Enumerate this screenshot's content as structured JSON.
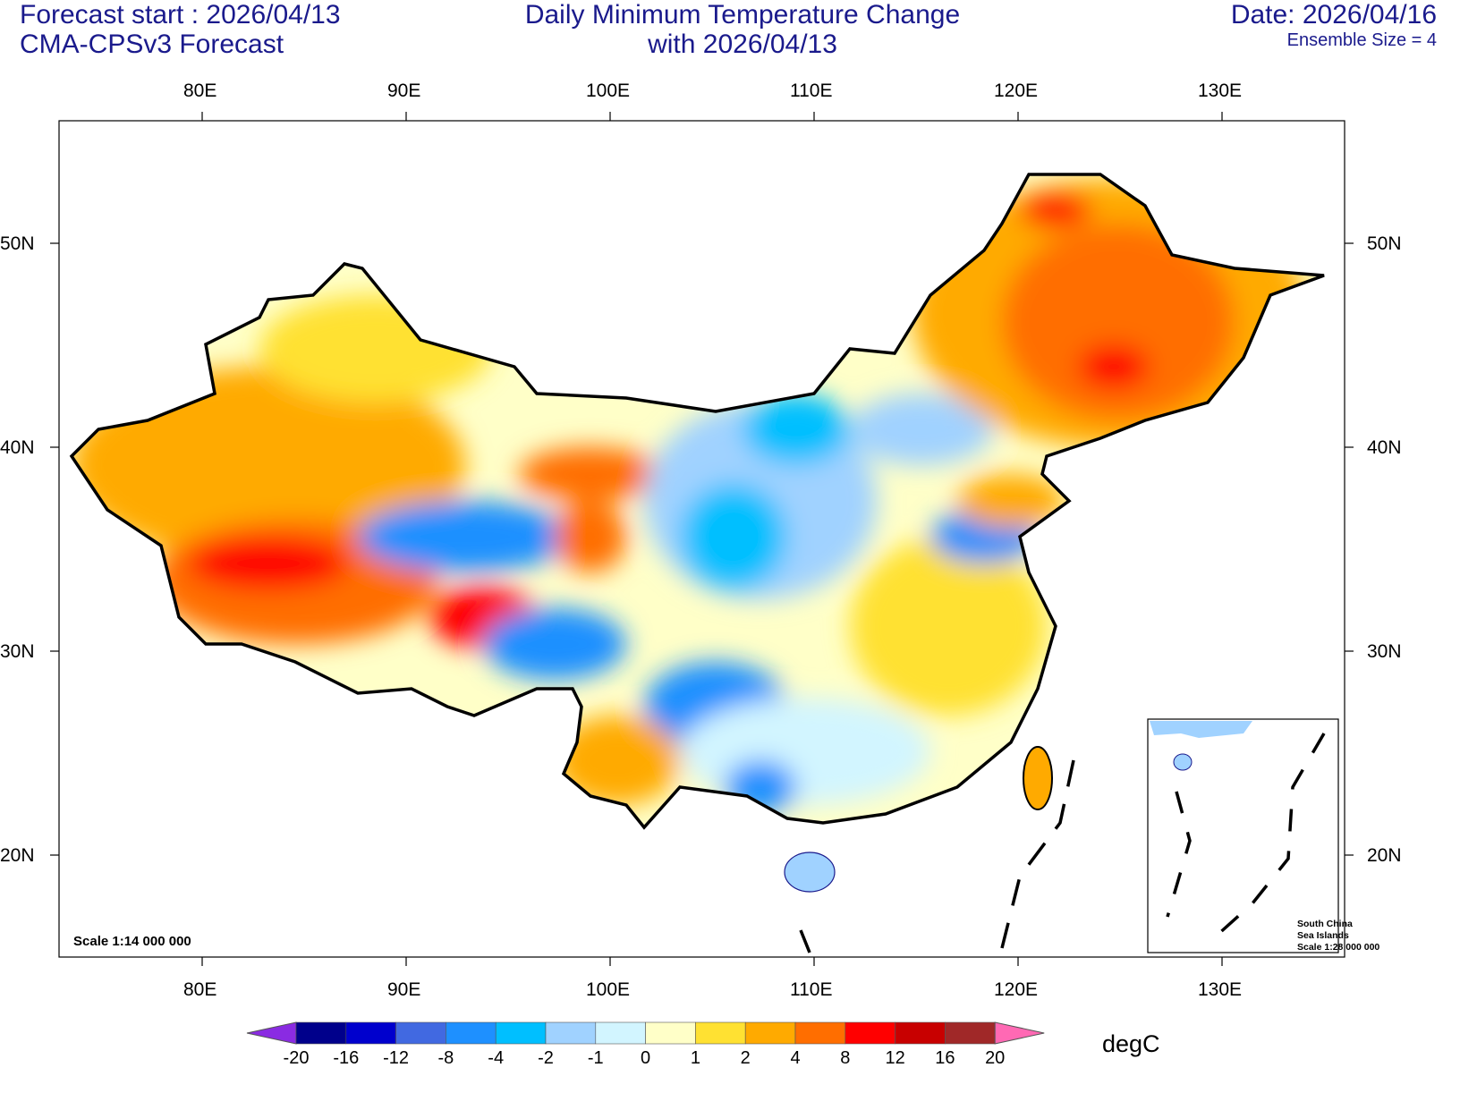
{
  "header": {
    "left_line1": "Forecast start : 2026/04/13",
    "left_line2": "CMA-CPSv3 Forecast",
    "center_line1": "Daily Minimum Temperature Change",
    "center_line2": "with 2026/04/13",
    "right_line1": "Date: 2026/04/16",
    "right_line2": "Ensemble Size = 4"
  },
  "axes": {
    "lon_labels": [
      "80E",
      "90E",
      "100E",
      "110E",
      "120E",
      "130E"
    ],
    "lat_labels": [
      "50N",
      "40N",
      "30N",
      "20N"
    ]
  },
  "scale_main": "Scale 1:14 000 000",
  "inset": {
    "line1": "South China",
    "line2": "Sea Islands",
    "line3": "Scale 1:28 000 000"
  },
  "colorbar": {
    "units": "degC",
    "levels": [
      "-20",
      "-16",
      "-12",
      "-8",
      "-4",
      "-2",
      "-1",
      "0",
      "1",
      "2",
      "4",
      "8",
      "12",
      "16",
      "20"
    ],
    "colors": [
      "#8a2be2",
      "#00008b",
      "#0000cd",
      "#4169e1",
      "#1e90ff",
      "#00bfff",
      "#a0d2ff",
      "#d2f5ff",
      "#ffffc8",
      "#ffe132",
      "#ffaa00",
      "#ff6e00",
      "#ff0000",
      "#c80000",
      "#a02828",
      "#ff69b4"
    ]
  }
}
